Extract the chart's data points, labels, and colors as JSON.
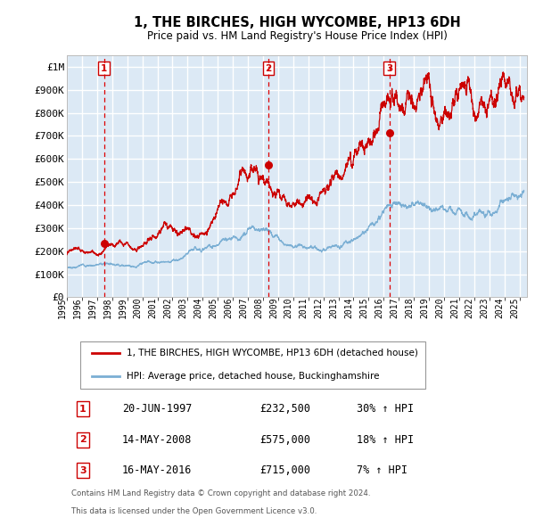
{
  "title": "1, THE BIRCHES, HIGH WYCOMBE, HP13 6DH",
  "subtitle": "Price paid vs. HM Land Registry's House Price Index (HPI)",
  "bg_color": "#dce9f5",
  "grid_color": "#ffffff",
  "red_line_color": "#cc0000",
  "blue_line_color": "#7bafd4",
  "purchases": [
    {
      "num": 1,
      "date_x": 1997.46,
      "price": 232500,
      "label": "20-JUN-1997",
      "pct": "30%",
      "dir": "↑"
    },
    {
      "num": 2,
      "date_x": 2008.37,
      "price": 575000,
      "label": "14-MAY-2008",
      "pct": "18%",
      "dir": "↑"
    },
    {
      "num": 3,
      "date_x": 2016.37,
      "price": 715000,
      "label": "16-MAY-2016",
      "pct": "7%",
      "dir": "↑"
    }
  ],
  "legend_label_red": "1, THE BIRCHES, HIGH WYCOMBE, HP13 6DH (detached house)",
  "legend_label_blue": "HPI: Average price, detached house, Buckinghamshire",
  "footer_line1": "Contains HM Land Registry data © Crown copyright and database right 2024.",
  "footer_line2": "This data is licensed under the Open Government Licence v3.0.",
  "ylim": [
    0,
    1050000
  ],
  "xlim": [
    1995.0,
    2025.5
  ],
  "yticks": [
    0,
    100000,
    200000,
    300000,
    400000,
    500000,
    600000,
    700000,
    800000,
    900000,
    1000000
  ],
  "ytick_labels": [
    "£0",
    "£100K",
    "£200K",
    "£300K",
    "£400K",
    "£500K",
    "£600K",
    "£700K",
    "£800K",
    "£900K",
    "£1M"
  ]
}
